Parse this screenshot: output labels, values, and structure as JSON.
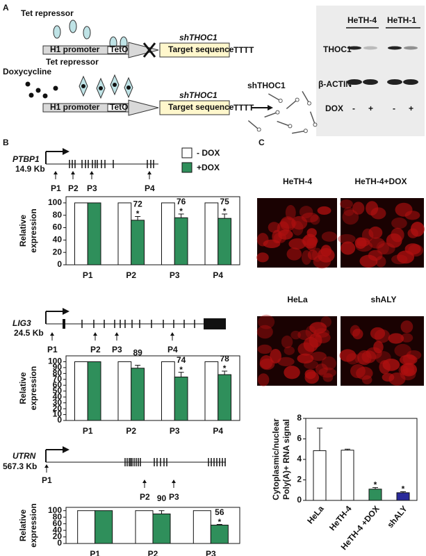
{
  "panel_labels": [
    "A",
    "B",
    "C"
  ],
  "panel_a": {
    "construct_1": {
      "repressor": "Tet repressor",
      "promoter": "H1 promoter",
      "operator": "TetO",
      "gene": "shTHOC1",
      "target": "Target sequence",
      "terminator": "TTTT"
    },
    "inducer": "Doxycycline",
    "construct_2": {
      "repressor": "Tet repressor",
      "promoter": "H1 promoter",
      "operator": "TetO",
      "gene": "shTHOC1",
      "target": "Target sequence",
      "terminator": "TTTT"
    },
    "product": "shTHOC1",
    "blot": {
      "lane_groups": [
        "HeTH-4",
        "HeTH-1"
      ],
      "rows": [
        "THOC1",
        "β-ACTIN"
      ],
      "treatment": "DOX",
      "lanes": [
        "-",
        "+",
        "-",
        "+"
      ]
    }
  },
  "genes": [
    {
      "name": "PTBP1",
      "size": "14.9 Kb",
      "primers": [
        "P1",
        "P2",
        "P3",
        "P4"
      ]
    },
    {
      "name": "LIG3",
      "size": "24.5 Kb",
      "primers": [
        "P1",
        "P2",
        "P3",
        "P4"
      ]
    },
    {
      "name": "UTRN",
      "size": "567.3 Kb",
      "primers": [
        "P1",
        "P2",
        "P3"
      ]
    }
  ],
  "images": [
    "HeTH-4",
    "HeTH-4+DOX",
    "HeLa",
    "shALY"
  ],
  "chart_data": [
    {
      "type": "bar",
      "categories": [
        "P1",
        "P2",
        "P3",
        "P4"
      ],
      "ylabel": [
        "Relative",
        "expression"
      ],
      "ylim": [
        0,
        110
      ],
      "yticks": [
        0,
        20,
        40,
        60,
        80,
        100
      ],
      "series": [
        {
          "name": "- DOX",
          "color": "#ffffff",
          "values": [
            100,
            100,
            100,
            100
          ]
        },
        {
          "name": "+DOX",
          "color": "#2f8f5b",
          "values": [
            100,
            72,
            76,
            75
          ],
          "errors": [
            null,
            6,
            6,
            7
          ],
          "value_labels": [
            null,
            "72",
            "76",
            "75"
          ],
          "markers": [
            null,
            "*",
            "*",
            "*"
          ]
        }
      ]
    },
    {
      "type": "bar",
      "categories": [
        "P1",
        "P2",
        "P3",
        "P4"
      ],
      "ylabel": [
        "Relative",
        "expression"
      ],
      "ylim": [
        0,
        110
      ],
      "yticks": [
        0,
        10,
        20,
        30,
        40,
        50,
        60,
        70,
        80,
        90,
        100
      ],
      "series": [
        {
          "color": "#ffffff",
          "values": [
            100,
            100,
            100,
            100
          ]
        },
        {
          "color": "#2f8f5b",
          "values": [
            100,
            89,
            74,
            78
          ],
          "errors": [
            null,
            5,
            8,
            6
          ],
          "value_labels": [
            null,
            "89",
            "74",
            "78"
          ],
          "markers": [
            null,
            null,
            "*",
            "*"
          ]
        }
      ]
    },
    {
      "type": "bar",
      "categories": [
        "P1",
        "P2",
        "P3"
      ],
      "ylabel": [
        "Relative",
        "expression"
      ],
      "ylim": [
        0,
        110
      ],
      "yticks": [
        0,
        20,
        40,
        60,
        80,
        100
      ],
      "series": [
        {
          "color": "#ffffff",
          "values": [
            100,
            100,
            100
          ]
        },
        {
          "color": "#2f8f5b",
          "values": [
            100,
            90,
            56
          ],
          "errors": [
            null,
            10,
            2
          ],
          "value_labels": [
            null,
            "90",
            "56"
          ],
          "markers": [
            null,
            null,
            "*"
          ]
        }
      ]
    },
    {
      "type": "bar",
      "categories": [
        "HeLa",
        "HeTH-4",
        "HeTH-4 +DOX",
        "shALY"
      ],
      "ylabel": [
        "Cytoplasmic/nuclear",
        "Poly(A)+ RNA signal"
      ],
      "ylim": [
        0,
        8
      ],
      "yticks": [
        0,
        2,
        4,
        6,
        8
      ],
      "series": [
        {
          "colors": [
            "#ffffff",
            "#ffffff",
            "#2f8f5b",
            "#2a2a9a"
          ],
          "values": [
            4.85,
            4.9,
            1.1,
            0.75
          ],
          "errors": [
            2.2,
            0.1,
            0.15,
            0.1
          ],
          "markers": [
            null,
            null,
            "*",
            "*"
          ]
        }
      ]
    }
  ]
}
